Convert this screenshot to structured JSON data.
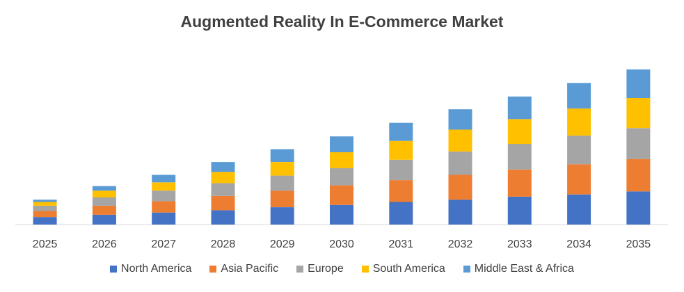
{
  "chart_data": {
    "type": "bar",
    "stacked": true,
    "title": "Augmented Reality In E-Commerce Market",
    "xlabel": "",
    "ylabel": "",
    "categories": [
      "2025",
      "2026",
      "2027",
      "2028",
      "2029",
      "2030",
      "2031",
      "2032",
      "2033",
      "2034",
      "2035"
    ],
    "series": [
      {
        "name": "North America",
        "color": "#4472C4",
        "values": [
          10,
          13,
          16,
          19,
          23,
          26,
          30,
          33,
          37,
          40,
          44
        ]
      },
      {
        "name": "Asia Pacific",
        "color": "#ED7D31",
        "values": [
          8,
          12,
          15,
          19,
          22,
          26,
          29,
          33,
          36,
          40,
          43
        ]
      },
      {
        "name": "Europe",
        "color": "#A5A5A5",
        "values": [
          7,
          11,
          14,
          17,
          20,
          23,
          27,
          31,
          34,
          38,
          41
        ]
      },
      {
        "name": "South America",
        "color": "#FFC000",
        "values": [
          5,
          9,
          11,
          15,
          18,
          21,
          25,
          29,
          33,
          36,
          40
        ]
      },
      {
        "name": "Middle East & Africa",
        "color": "#5B9BD5",
        "values": [
          3,
          6,
          10,
          13,
          17,
          21,
          24,
          27,
          30,
          34,
          38
        ]
      }
    ],
    "ylim": [
      0,
      215
    ],
    "grid": false,
    "legend_position": "bottom"
  }
}
